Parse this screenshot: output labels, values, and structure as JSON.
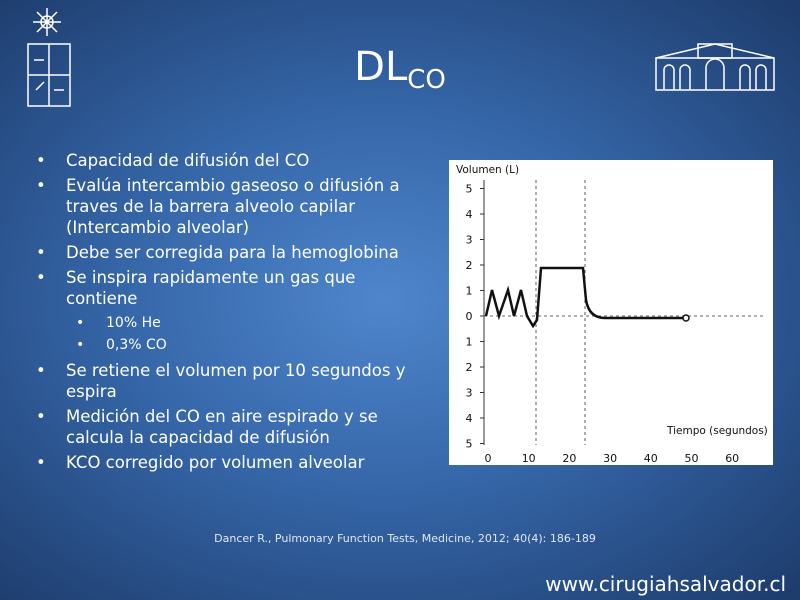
{
  "title": {
    "main": "DL",
    "subscript": "CO"
  },
  "bullets": [
    {
      "text": "Capacidad de difusión del CO"
    },
    {
      "text": "Evalúa intercambio gaseoso o difusión a traves de la barrera alveolo capilar (Intercambio alveolar)"
    },
    {
      "text": "Debe ser corregida para la hemoglobina"
    },
    {
      "text": "Se inspira rapidamente un gas que contiene",
      "sub": [
        "10% He",
        "0,3% CO"
      ]
    },
    {
      "text": "Se retiene el volumen por 10 segundos y espira"
    },
    {
      "text": "Medición del CO en aire espirado y se calcula la capacidad de difusión"
    },
    {
      "text": "KCO corregido por volumen alveolar"
    }
  ],
  "figure": {
    "y_label": "Volumen (L)",
    "x_label": "Tiempo (segundos)",
    "y_ticks": [
      "5",
      "4",
      "3",
      "2",
      "1",
      "0",
      "1",
      "2",
      "3",
      "4",
      "5"
    ],
    "x_ticks": [
      "0",
      "10",
      "20",
      "30",
      "40",
      "50",
      "60"
    ]
  },
  "citation": "Dancer R., Pulmonary Function Tests, Medicine, 2012; 40(4): 186-189",
  "website": "www.cirugiahsalvador.cl"
}
